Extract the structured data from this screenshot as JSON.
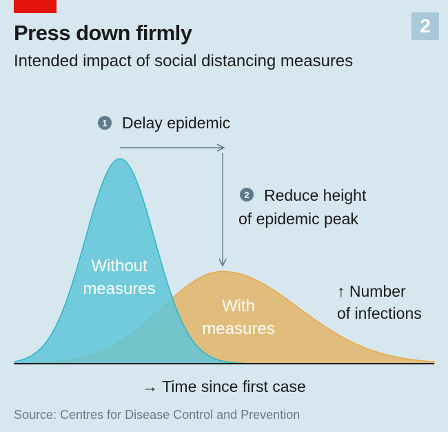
{
  "header": {
    "title": "Press down firmly",
    "subtitle": "Intended impact of social distancing measures",
    "badge": "2"
  },
  "source": "Source: Centres for Disease Control and Prevention",
  "colors": {
    "background": "#d7e7f0",
    "brand_red": "#e3120b",
    "without_fill": "#5fc6d8",
    "without_stroke": "#27b5c9",
    "with_fill": "#e0bd7d",
    "with_stroke": "#e8a845",
    "annotation": "#5f7b89"
  },
  "chart_data": {
    "type": "area",
    "title": "Press down firmly",
    "xlabel": "→ Time since first case",
    "ylabel": "↑ Number of infections",
    "ylabel_lines": [
      "↑ Number",
      "of infections"
    ],
    "xlim": [
      0,
      100
    ],
    "ylim": [
      0,
      1
    ],
    "grid": false,
    "series": [
      {
        "name": "Without measures",
        "label_lines": [
          "Without",
          "measures"
        ],
        "peak_x": 25,
        "peak_y": 1.0,
        "sigma": 8.3
      },
      {
        "name": "With measures",
        "label_lines": [
          "With",
          "measures"
        ],
        "peak_x": 49.5,
        "peak_y": 0.45,
        "sigma": 14.5
      }
    ],
    "annotations": [
      {
        "number": "1",
        "lines": [
          "Delay epidemic"
        ]
      },
      {
        "number": "2",
        "lines": [
          "Reduce height",
          "of epidemic peak"
        ]
      }
    ]
  }
}
